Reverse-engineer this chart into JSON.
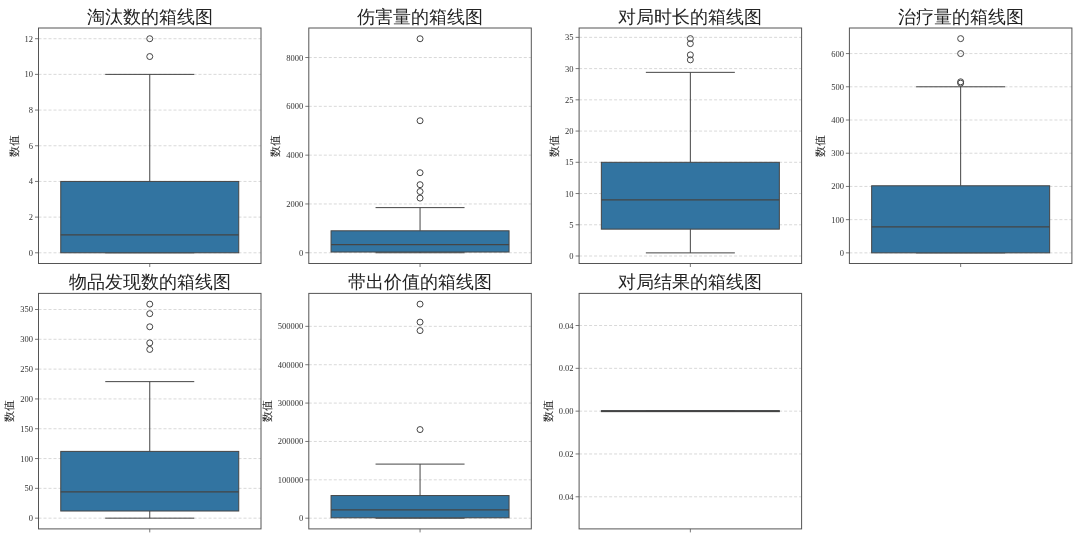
{
  "chart_data": [
    {
      "type": "box",
      "title": "淘汰数的箱线图",
      "ylabel": "数值",
      "categories": [
        null
      ],
      "color": "#3274a1",
      "grid": "y",
      "ylim": [
        -0.6,
        12.6
      ],
      "yticks": [
        0,
        2,
        4,
        6,
        8,
        10,
        12
      ],
      "boxes": [
        {
          "low": 0,
          "q1": 0,
          "median": 1,
          "q3": 4,
          "high": 10,
          "outliers": [
            11,
            12
          ]
        }
      ]
    },
    {
      "type": "box",
      "title": "伤害量的箱线图",
      "ylabel": "数值",
      "categories": [
        null
      ],
      "color": "#3274a1",
      "grid": "y",
      "ylim": [
        -440,
        9210
      ],
      "yticks": [
        0,
        2000,
        4000,
        6000,
        8000
      ],
      "boxes": [
        {
          "low": 0,
          "q1": 30,
          "median": 330,
          "q3": 900,
          "high": 1850,
          "outliers": [
            2240,
            2510,
            2790,
            3280,
            5410,
            8770
          ]
        }
      ]
    },
    {
      "type": "box",
      "title": "对局时长的箱线图",
      "ylabel": "数值",
      "categories": [
        null
      ],
      "color": "#3274a1",
      "grid": "y",
      "ylim": [
        -1.2,
        36.5
      ],
      "yticks": [
        0,
        5,
        10,
        15,
        20,
        25,
        30,
        35
      ],
      "boxes": [
        {
          "low": 0.5,
          "q1": 4.3,
          "median": 9,
          "q3": 15,
          "high": 29.4,
          "outliers": [
            31.4,
            32.2,
            34.0,
            34.8
          ]
        }
      ]
    },
    {
      "type": "box",
      "title": "治疗量的箱线图",
      "ylabel": "数值",
      "categories": [
        null
      ],
      "color": "#3274a1",
      "grid": "y",
      "ylim": [
        -32,
        677
      ],
      "yticks": [
        0,
        100,
        200,
        300,
        400,
        500,
        600
      ],
      "boxes": [
        {
          "low": 0,
          "q1": 0,
          "median": 78,
          "q3": 202,
          "high": 500,
          "outliers": [
            511,
            515,
            600,
            645
          ]
        }
      ]
    },
    {
      "type": "box",
      "title": "物品发现数的箱线图",
      "ylabel": "数值",
      "categories": [
        null
      ],
      "color": "#3274a1",
      "grid": "y",
      "ylim": [
        -18,
        377
      ],
      "yticks": [
        0,
        50,
        100,
        150,
        200,
        250,
        300,
        350
      ],
      "boxes": [
        {
          "low": 0,
          "q1": 12,
          "median": 44,
          "q3": 112,
          "high": 229,
          "outliers": [
            283,
            294,
            321,
            343,
            359
          ]
        }
      ]
    },
    {
      "type": "box",
      "title": "带出价值的箱线图",
      "ylabel": "数值",
      "categories": [
        null
      ],
      "color": "#3274a1",
      "grid": "y",
      "ylim": [
        -27900,
        585900
      ],
      "yticks": [
        0,
        100000,
        200000,
        300000,
        400000,
        500000
      ],
      "boxes": [
        {
          "low": 0,
          "q1": 1000,
          "median": 21500,
          "q3": 59000,
          "high": 141000,
          "outliers": [
            231000,
            489000,
            511000,
            558000
          ]
        }
      ]
    },
    {
      "type": "box",
      "title": "对局结果的箱线图",
      "ylabel": "数值",
      "categories": [
        null
      ],
      "color": "#3274a1",
      "grid": "y",
      "ylim": [
        -0.055,
        0.055
      ],
      "yticks": [
        {
          "value": -0.04,
          "label": "0.04"
        },
        {
          "value": -0.02,
          "label": "0.02"
        },
        {
          "value": 0,
          "label": "0.00"
        },
        {
          "value": 0.02,
          "label": "0.02"
        },
        {
          "value": 0.04,
          "label": "0.04"
        }
      ],
      "boxes": [
        {
          "low": 0,
          "q1": 0,
          "median": 0,
          "q3": 0,
          "high": 0
        }
      ]
    }
  ]
}
